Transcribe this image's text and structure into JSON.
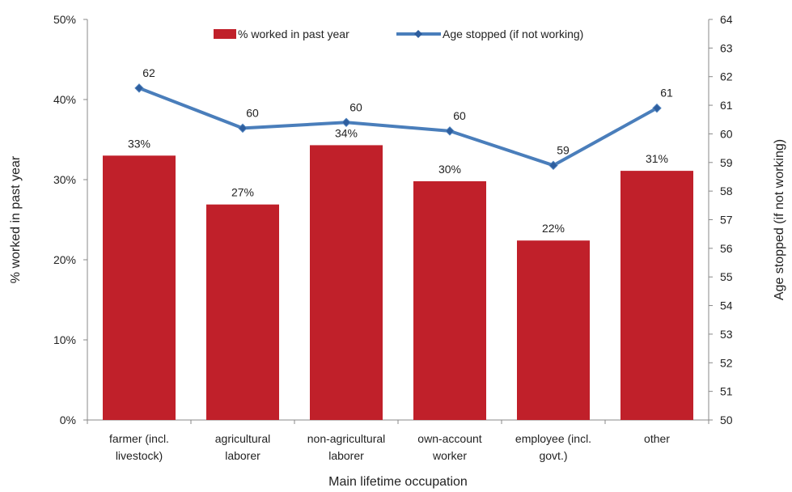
{
  "chart_data": {
    "type": "bar",
    "categories": [
      [
        "farmer (incl.",
        "livestock)"
      ],
      [
        "agricultural",
        "laborer"
      ],
      [
        "non-agricultural",
        "laborer"
      ],
      [
        "own-account",
        "worker"
      ],
      [
        "employee (incl.",
        "govt.)"
      ],
      [
        "other"
      ]
    ],
    "series": [
      {
        "name": "% worked in past year",
        "kind": "bar",
        "axis": "left",
        "values": [
          33.0,
          26.9,
          34.3,
          29.8,
          22.4,
          31.1
        ],
        "labels": [
          "33%",
          "27%",
          "34%",
          "30%",
          "22%",
          "31%"
        ],
        "color": "#C0202A"
      },
      {
        "name": "Age stopped (if not working)",
        "kind": "line",
        "axis": "right",
        "values": [
          61.6,
          60.2,
          60.4,
          60.1,
          58.9,
          60.9
        ],
        "labels": [
          "62",
          "60",
          "60",
          "60",
          "59",
          "61"
        ],
        "color": "#4A7EBB",
        "marker_color": "#2E5E9E"
      }
    ],
    "xlabel": "Main lifetime occupation",
    "ylabel": "% worked in past year",
    "y2label": "Age stopped (if not working)",
    "ylim": [
      0,
      50
    ],
    "y2lim": [
      50,
      64
    ],
    "yticks": [
      "0%",
      "10%",
      "20%",
      "30%",
      "40%",
      "50%"
    ],
    "y2ticks": [
      "50",
      "51",
      "52",
      "53",
      "54",
      "55",
      "56",
      "57",
      "58",
      "59",
      "60",
      "61",
      "62",
      "63",
      "64"
    ],
    "grid": false,
    "legend": "top-center"
  }
}
